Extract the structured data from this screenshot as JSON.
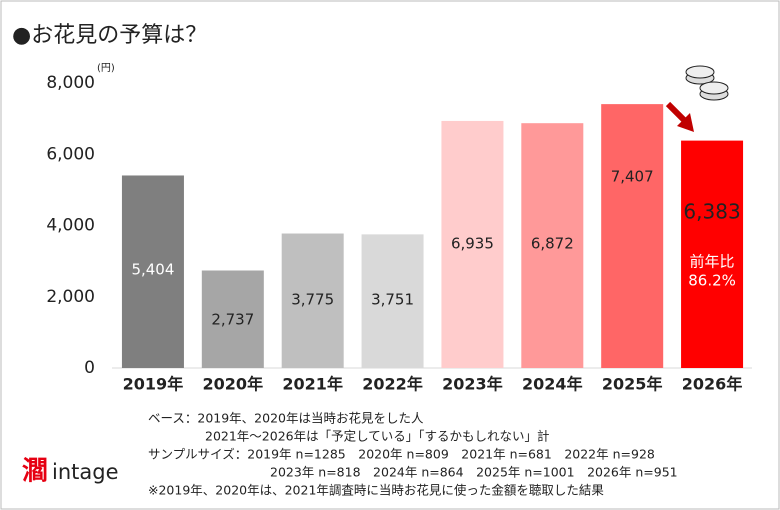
{
  "chart_data": {
    "type": "bar",
    "title": "●お花見の予算は？",
    "y_unit": "(円)",
    "categories": [
      "2019年",
      "2020年",
      "2021年",
      "2022年",
      "2023年",
      "2024年",
      "2025年",
      "2026年"
    ],
    "values": [
      5404,
      2737,
      3775,
      3751,
      6935,
      6872,
      7407,
      6383
    ],
    "value_labels": [
      "5,404",
      "2,737",
      "3,775",
      "3,751",
      "6,935",
      "6,872",
      "7,407",
      "6,383"
    ],
    "colors": [
      "#7f7f7f",
      "#a6a6a6",
      "#bfbfbf",
      "#d9d9d9",
      "#ffcccc",
      "#ff9999",
      "#ff6666",
      "#ff0000"
    ],
    "ylim": [
      0,
      8000
    ],
    "yticks": [
      0,
      {
        "value": 2000,
        "label": "2,000"
      },
      {
        "value": 4000,
        "label": "4,000"
      },
      {
        "value": 6000,
        "label": "6,000"
      },
      {
        "value": 8000,
        "label": "8,000"
      }
    ],
    "grid": false,
    "annotations": [
      "前年比",
      "86.2%"
    ],
    "notes": [
      "ベース：2019年、2020年は当時お花見をした人",
      "2021年～2026年は「予定している」「するかもしれない」計",
      "サンプルサイズ：2019年 n=1285　2020年 n=809　2021年 n=681　2022年 n=928",
      "2023年 n=818　2024年 n=864　2025年 n=1001　2026年 n=951",
      "※2019年、2020年は、2021年調査時に当時お花見に使った金額を聴取した結果"
    ],
    "logo": "intage"
  }
}
